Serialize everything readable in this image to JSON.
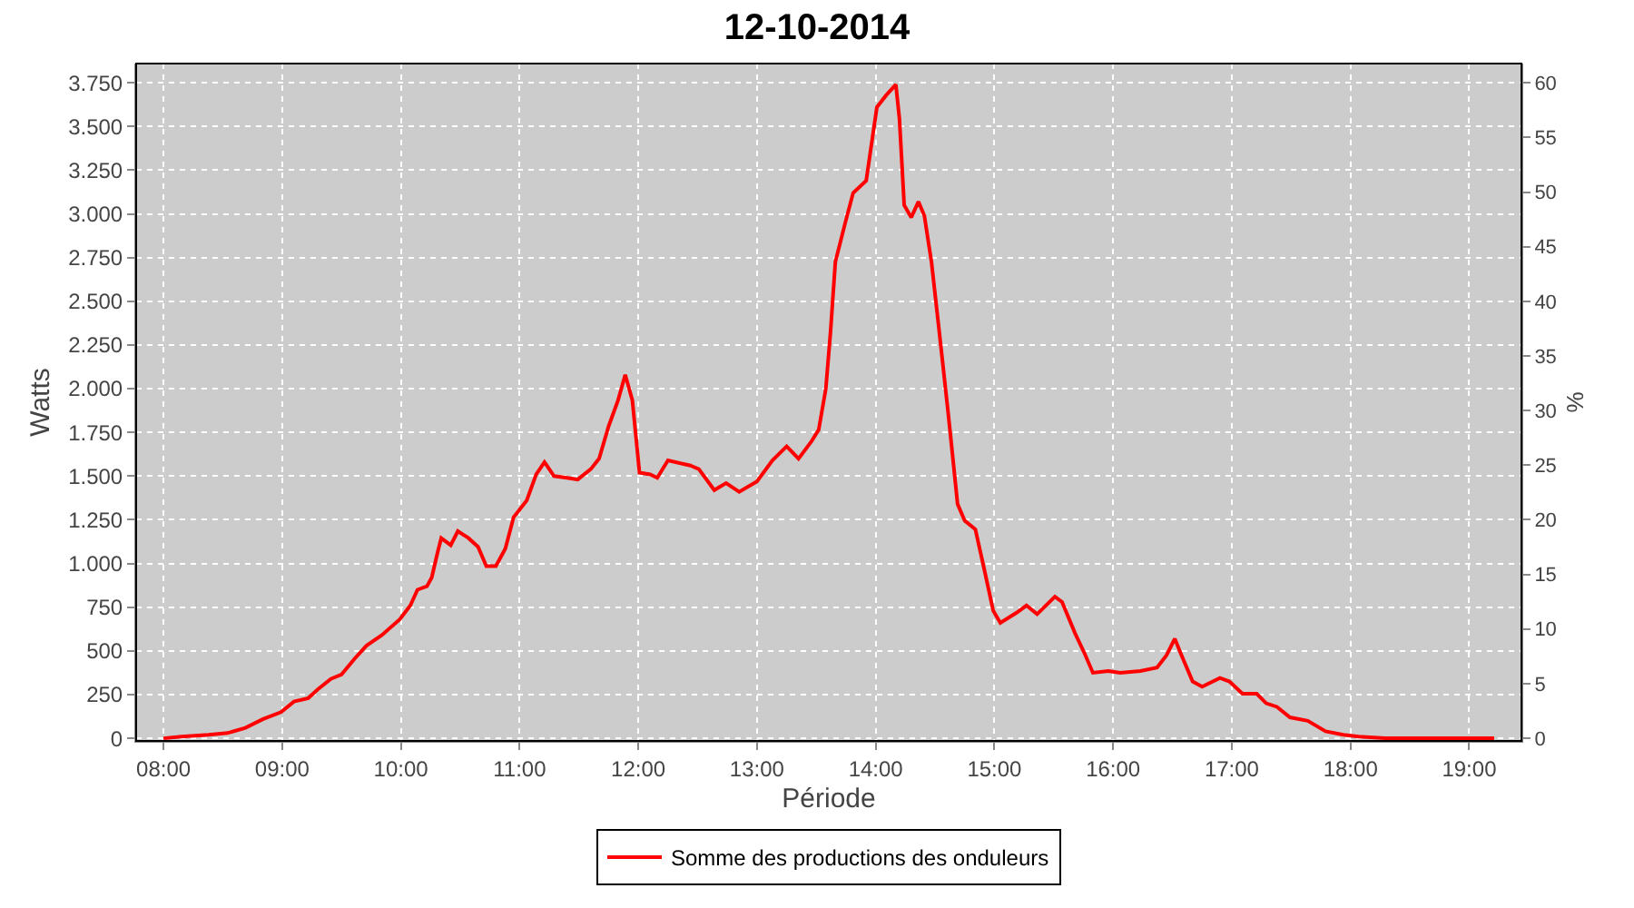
{
  "chart_data": {
    "type": "line",
    "title": "12-10-2014",
    "xlabel": "Période",
    "ylabel": "Watts",
    "y2label": "%",
    "x": [
      8.0,
      8.15,
      8.38,
      8.54,
      8.69,
      8.84,
      8.99,
      9.1,
      9.22,
      9.3,
      9.41,
      9.5,
      9.61,
      9.71,
      9.84,
      9.99,
      10.08,
      10.14,
      10.22,
      10.26,
      10.31,
      10.34,
      10.42,
      10.48,
      10.57,
      10.65,
      10.72,
      10.8,
      10.88,
      10.95,
      11.06,
      11.14,
      11.21,
      11.29,
      11.4,
      11.49,
      11.6,
      11.67,
      11.75,
      11.83,
      11.89,
      11.95,
      12.01,
      12.1,
      12.16,
      12.25,
      12.44,
      12.51,
      12.64,
      12.74,
      12.85,
      13.0,
      13.13,
      13.25,
      13.35,
      13.46,
      13.52,
      13.58,
      13.62,
      13.66,
      13.74,
      13.81,
      13.92,
      14.01,
      14.09,
      14.17,
      14.2,
      14.24,
      14.3,
      14.36,
      14.41,
      14.47,
      14.53,
      14.61,
      14.69,
      14.75,
      14.84,
      14.92,
      14.99,
      15.05,
      15.19,
      15.27,
      15.36,
      15.51,
      15.57,
      15.68,
      15.76,
      15.83,
      15.96,
      16.06,
      16.23,
      16.37,
      16.45,
      16.52,
      16.57,
      16.67,
      16.75,
      16.9,
      16.98,
      17.09,
      17.21,
      17.29,
      17.38,
      17.49,
      17.64,
      17.79,
      17.94,
      18.07,
      18.3,
      19.21
    ],
    "series": [
      {
        "name": "Somme des productions des onduleurs",
        "color": "#ff0000",
        "values": [
          0,
          10,
          20,
          30,
          60,
          110,
          150,
          210,
          230,
          280,
          340,
          365,
          455,
          530,
          590,
          680,
          760,
          850,
          870,
          920,
          1065,
          1145,
          1105,
          1185,
          1145,
          1095,
          985,
          985,
          1085,
          1265,
          1360,
          1510,
          1580,
          1500,
          1490,
          1480,
          1540,
          1600,
          1785,
          1935,
          2080,
          1935,
          1520,
          1510,
          1490,
          1590,
          1560,
          1540,
          1420,
          1460,
          1410,
          1470,
          1590,
          1670,
          1600,
          1700,
          1765,
          2000,
          2330,
          2725,
          2940,
          3120,
          3190,
          3610,
          3680,
          3740,
          3545,
          3050,
          2980,
          3070,
          2990,
          2725,
          2360,
          1865,
          1340,
          1245,
          1195,
          950,
          730,
          660,
          720,
          760,
          710,
          810,
          780,
          600,
          485,
          375,
          385,
          375,
          385,
          405,
          475,
          570,
          485,
          325,
          295,
          345,
          325,
          255,
          255,
          200,
          180,
          120,
          100,
          40,
          20,
          10,
          0,
          0
        ]
      }
    ],
    "xlim": [
      7.77,
      19.44
    ],
    "xticks": [
      {
        "value": 8,
        "label": "08:00"
      },
      {
        "value": 9,
        "label": "09:00"
      },
      {
        "value": 10,
        "label": "10:00"
      },
      {
        "value": 11,
        "label": "11:00"
      },
      {
        "value": 12,
        "label": "12:00"
      },
      {
        "value": 13,
        "label": "13:00"
      },
      {
        "value": 14,
        "label": "14:00"
      },
      {
        "value": 15,
        "label": "15:00"
      },
      {
        "value": 16,
        "label": "16:00"
      },
      {
        "value": 17,
        "label": "17:00"
      },
      {
        "value": 18,
        "label": "18:00"
      },
      {
        "value": 19,
        "label": "19:00"
      }
    ],
    "ylim": [
      -15,
      3860
    ],
    "yticks": [
      0,
      250,
      500,
      750,
      {
        "value": 1000,
        "label": "1.000"
      },
      {
        "value": 1250,
        "label": "1.250"
      },
      {
        "value": 1500,
        "label": "1.500"
      },
      {
        "value": 1750,
        "label": "1.750"
      },
      {
        "value": 2000,
        "label": "2.000"
      },
      {
        "value": 2250,
        "label": "2.250"
      },
      {
        "value": 2500,
        "label": "2.500"
      },
      {
        "value": 2750,
        "label": "2.750"
      },
      {
        "value": 3000,
        "label": "3.000"
      },
      {
        "value": 3250,
        "label": "3.250"
      },
      {
        "value": 3500,
        "label": "3.500"
      },
      {
        "value": 3750,
        "label": "3.750"
      }
    ],
    "y2lim": [
      -0.24,
      61.76
    ],
    "y2ticks": [
      0,
      5,
      10,
      15,
      20,
      25,
      30,
      35,
      40,
      45,
      50,
      55,
      60
    ],
    "grid": true,
    "legend": "bottom",
    "marker": "none",
    "line_style": "solid"
  }
}
